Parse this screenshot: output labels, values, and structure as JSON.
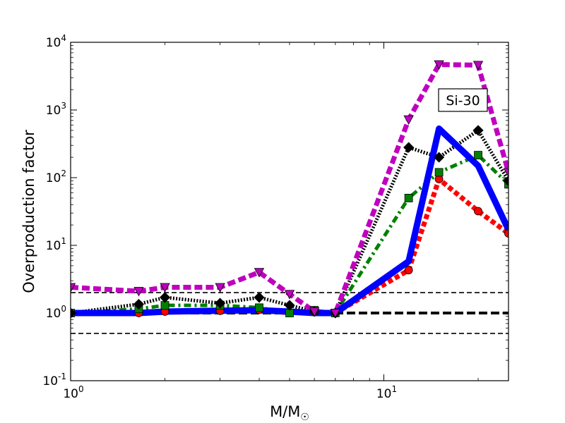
{
  "chart_data": {
    "type": "line",
    "xscale": "log",
    "yscale": "log",
    "xlim": [
      1,
      25
    ],
    "ylim": [
      0.1,
      10000
    ],
    "xlabel": "M/M",
    "xlabel_symbol": "☉",
    "ylabel": "Overproduction factor",
    "grid": false,
    "x_ticks": [
      {
        "value": 1,
        "base": "10",
        "exp": "0"
      },
      {
        "value": 10,
        "base": "10",
        "exp": "1"
      }
    ],
    "y_ticks": [
      {
        "value": 0.1,
        "base": "10",
        "exp": "-1"
      },
      {
        "value": 1,
        "base": "10",
        "exp": "0"
      },
      {
        "value": 10,
        "base": "10",
        "exp": "1"
      },
      {
        "value": 100,
        "base": "10",
        "exp": "2"
      },
      {
        "value": 1000,
        "base": "10",
        "exp": "3"
      },
      {
        "value": 10000,
        "base": "10",
        "exp": "4"
      }
    ],
    "annotation": "Si-30",
    "reference_lines": [
      {
        "y": 2.0,
        "style": "dashed-thin"
      },
      {
        "y": 1.0,
        "style": "dashed-thick"
      },
      {
        "y": 0.5,
        "style": "dashed-thin"
      }
    ],
    "series": [
      {
        "color": "#ff0000",
        "dash": "dense",
        "marker": "circle",
        "x": [
          1,
          1.65,
          2,
          3,
          4,
          5,
          6,
          7,
          12,
          15,
          20,
          25
        ],
        "y": [
          1.0,
          1.0,
          1.05,
          1.08,
          1.12,
          1.0,
          1.05,
          1.0,
          4.3,
          95,
          32,
          15
        ]
      },
      {
        "color": "#008000",
        "dash": "dashdot",
        "marker": "square",
        "x": [
          1,
          1.65,
          2,
          3,
          4,
          5,
          6,
          7,
          12,
          15,
          20,
          25
        ],
        "y": [
          1.0,
          1.15,
          1.3,
          1.3,
          1.2,
          1.0,
          1.1,
          1.0,
          50,
          120,
          215,
          80
        ]
      },
      {
        "color": "#000000",
        "dash": "dotted",
        "marker": "diamond",
        "x": [
          1,
          1.65,
          2,
          3,
          4,
          5,
          6,
          7,
          12,
          15,
          20,
          25
        ],
        "y": [
          1.0,
          1.35,
          1.7,
          1.4,
          1.7,
          1.3,
          1.05,
          1.0,
          280,
          200,
          500,
          90
        ]
      },
      {
        "color": "#bf00bf",
        "dash": "dashed",
        "marker": "triangle-down",
        "x": [
          1,
          1.65,
          2,
          3,
          4,
          5,
          6,
          7,
          12,
          15,
          20,
          25
        ],
        "y": [
          2.4,
          2.1,
          2.4,
          2.4,
          4.0,
          1.9,
          1.05,
          1.0,
          720,
          4700,
          4600,
          120
        ]
      },
      {
        "color": "#0000ff",
        "dash": "solid",
        "marker": "none",
        "x": [
          1,
          1.65,
          2,
          3,
          4,
          5,
          6,
          7,
          12,
          15,
          20,
          25
        ],
        "y": [
          1.0,
          1.0,
          1.05,
          1.08,
          1.1,
          1.05,
          1.0,
          1.0,
          5.8,
          530,
          150,
          17
        ]
      }
    ]
  }
}
